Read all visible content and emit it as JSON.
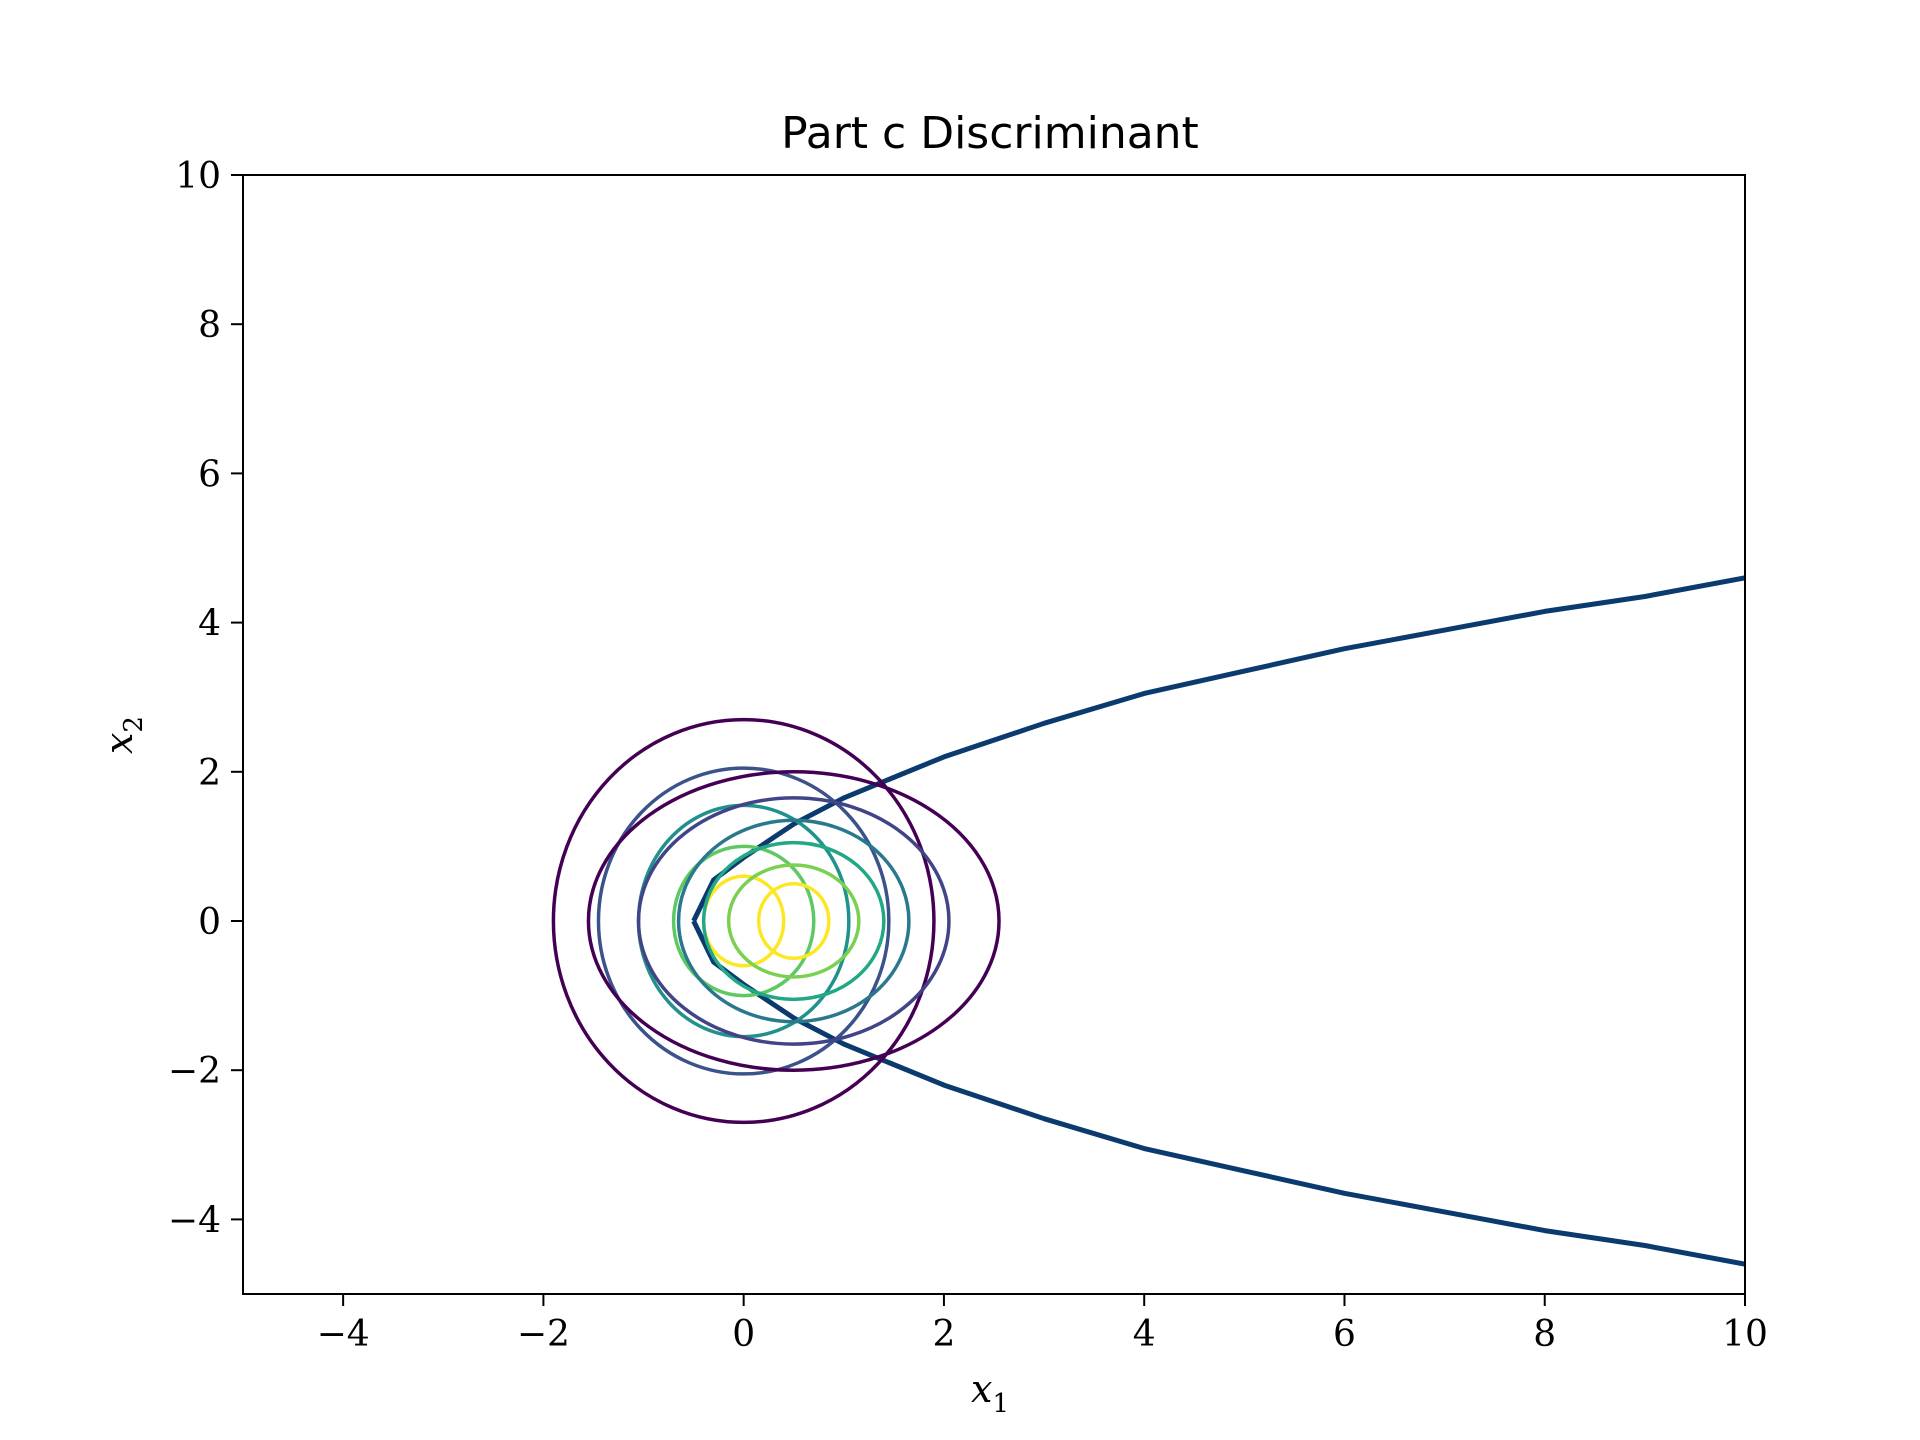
{
  "chart_data": {
    "type": "contour",
    "title": "Part c Discriminant",
    "xlabel": {
      "base": "x",
      "sub": "1"
    },
    "ylabel": {
      "base": "x",
      "sub": "2"
    },
    "xlim": [
      -5,
      10
    ],
    "ylim": [
      -5,
      10
    ],
    "xticks": [
      -4,
      -2,
      0,
      2,
      4,
      6,
      8,
      10
    ],
    "yticks": [
      -4,
      -2,
      0,
      2,
      4,
      6,
      8,
      10
    ],
    "xtick_labels": [
      "−4",
      "−2",
      "0",
      "2",
      "4",
      "6",
      "8",
      "10"
    ],
    "ytick_labels": [
      "−4",
      "−2",
      "0",
      "2",
      "4",
      "6",
      "8",
      "10"
    ],
    "grid": false,
    "colormap": "viridis",
    "series": [
      {
        "center": [
          0,
          0
        ],
        "contours": [
          {
            "rx": 1.9,
            "ry": 2.7,
            "color": "#440154"
          },
          {
            "rx": 1.45,
            "ry": 2.05,
            "color": "#3b528b"
          },
          {
            "rx": 1.05,
            "ry": 1.55,
            "color": "#21918c"
          },
          {
            "rx": 0.7,
            "ry": 1.0,
            "color": "#5ec962"
          },
          {
            "rx": 0.4,
            "ry": 0.6,
            "color": "#fde725"
          }
        ]
      },
      {
        "center": [
          0.5,
          0
        ],
        "contours": [
          {
            "rx": 2.05,
            "ry": 2.0,
            "color": "#440154"
          },
          {
            "rx": 1.55,
            "ry": 1.65,
            "color": "#414487"
          },
          {
            "rx": 1.15,
            "ry": 1.35,
            "color": "#2a788e"
          },
          {
            "rx": 0.9,
            "ry": 1.05,
            "color": "#22a884"
          },
          {
            "rx": 0.65,
            "ry": 0.75,
            "color": "#7ad151"
          },
          {
            "rx": 0.35,
            "ry": 0.5,
            "color": "#fde725"
          }
        ]
      }
    ],
    "decision_boundary": {
      "color": "#0b3b6e",
      "vertex": [
        -0.5,
        0
      ],
      "x": [
        -0.5,
        -0.3,
        0,
        0.5,
        1,
        2,
        3,
        4,
        5,
        6,
        7,
        8,
        9,
        10
      ],
      "y_upper": [
        0,
        0.55,
        0.85,
        1.3,
        1.65,
        2.2,
        2.65,
        3.05,
        3.35,
        3.65,
        3.9,
        4.15,
        4.35,
        4.6
      ],
      "y_lower": [
        0,
        -0.55,
        -0.85,
        -1.3,
        -1.65,
        -2.2,
        -2.65,
        -3.05,
        -3.35,
        -3.65,
        -3.9,
        -4.15,
        -4.35,
        -4.6
      ]
    }
  }
}
